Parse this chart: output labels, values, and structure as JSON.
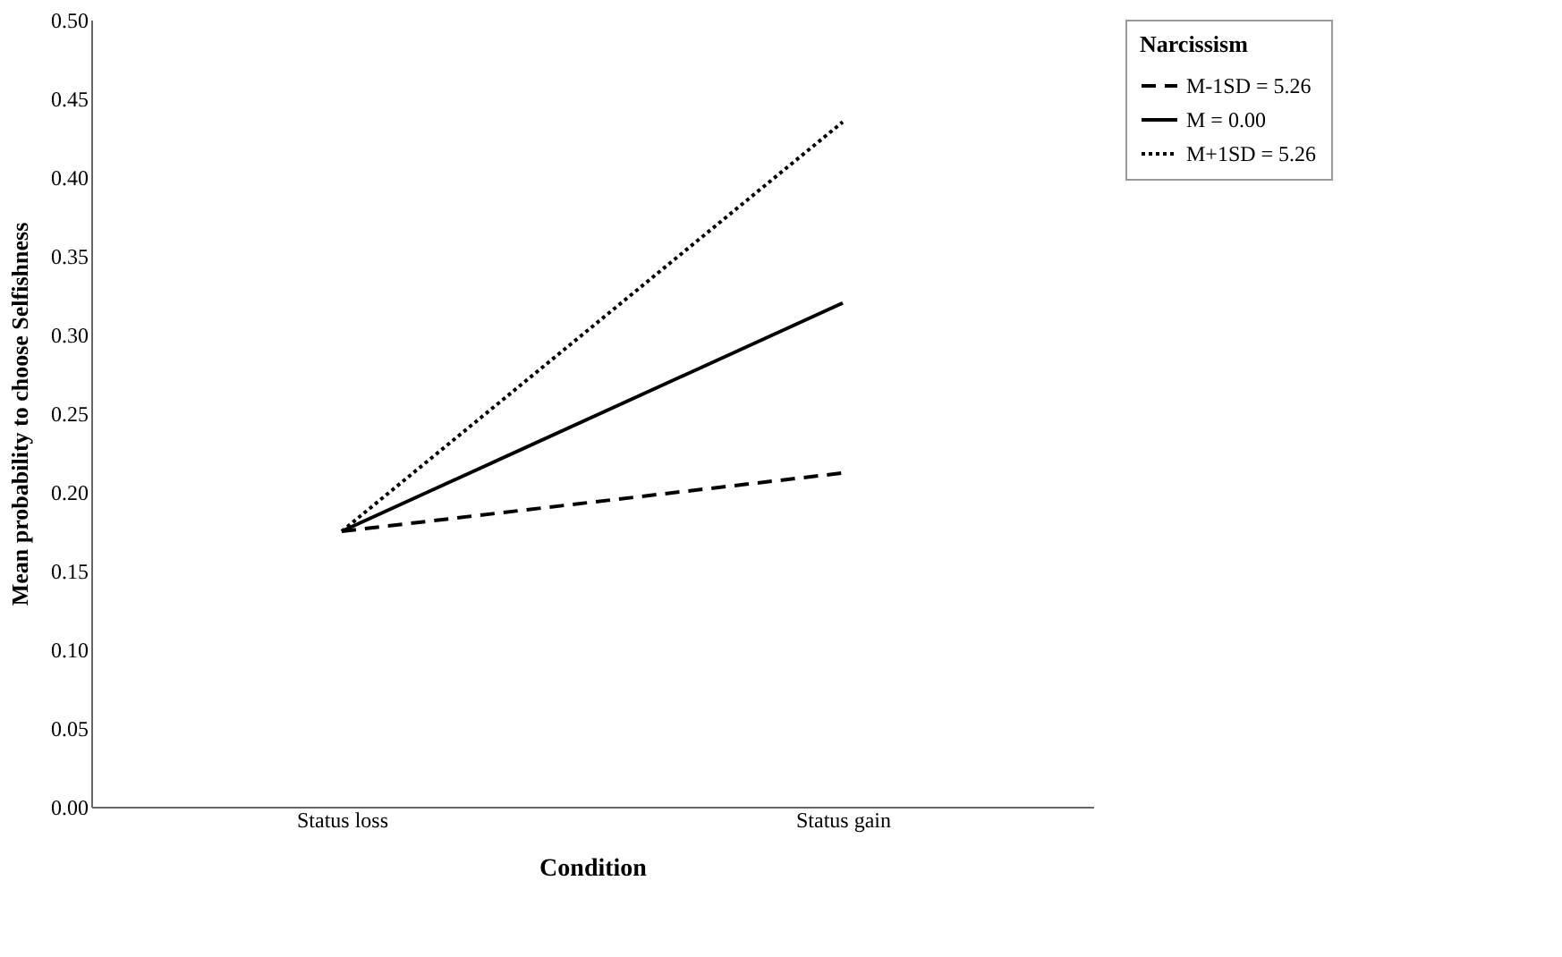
{
  "chart_data": {
    "type": "line",
    "xlabel": "Condition",
    "ylabel": "Mean probability to choose Selfishness",
    "legend_title": "Narcissism",
    "categories": [
      "Status loss",
      "Status gain"
    ],
    "series": [
      {
        "name": "M-1SD = 5.26",
        "color": "#000000",
        "line_style": "dashed",
        "values": [
          0.175,
          0.212
        ]
      },
      {
        "name": "M = 0.00",
        "color": "#000000",
        "line_style": "solid",
        "values": [
          0.175,
          0.32
        ]
      },
      {
        "name": "M+1SD = 5.26",
        "color": "#000000",
        "line_style": "dotted",
        "values": [
          0.175,
          0.435
        ]
      }
    ],
    "ylim": [
      0,
      0.5
    ],
    "yticks": [
      {
        "value": 0,
        "label": "0.00"
      },
      0.05,
      {
        "value": 0.1,
        "label": "0.10"
      },
      0.15,
      {
        "value": 0.2,
        "label": "0.20"
      },
      0.25,
      {
        "value": 0.3,
        "label": "0.30"
      },
      0.35,
      {
        "value": 0.4,
        "label": "0.40"
      },
      0.45,
      {
        "value": 0.5,
        "label": "0.50"
      }
    ],
    "grid": false,
    "legend": "top right",
    "marker": "none"
  }
}
